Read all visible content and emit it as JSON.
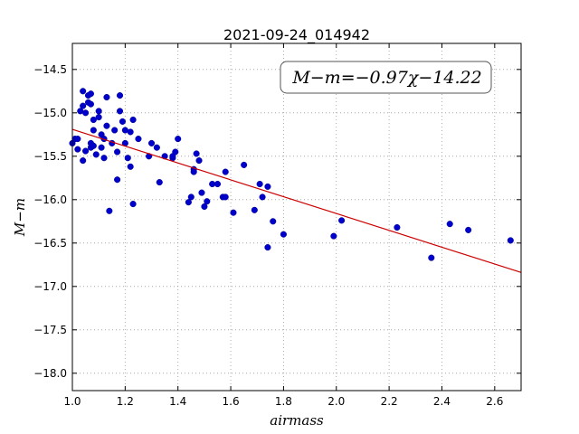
{
  "chart_data": {
    "type": "scatter",
    "title": "2021-09-24_014942",
    "xlabel": "airmass",
    "ylabel": "M−m",
    "xlim": [
      1.0,
      2.7
    ],
    "ylim": [
      -18.2,
      -14.2
    ],
    "y_inverted": true,
    "grid": true,
    "grid_style": "dotted",
    "x_ticks": [
      1.0,
      1.2,
      1.4,
      1.6,
      1.8,
      2.0,
      2.2,
      2.4,
      2.6
    ],
    "x_tick_labels": [
      "1.0",
      "1.2",
      "1.4",
      "1.6",
      "1.8",
      "2.0",
      "2.2",
      "2.4",
      "2.6"
    ],
    "y_ticks": [
      -14.5,
      -15.0,
      -15.5,
      -16.0,
      -16.5,
      -17.0,
      -17.5,
      -18.0
    ],
    "y_tick_labels": [
      "−14.5",
      "−15.0",
      "−15.5",
      "−16.0",
      "−16.5",
      "−17.0",
      "−17.5",
      "−18.0"
    ],
    "annotation": "M−m=−0.97χ−14.22",
    "fit": {
      "slope": -0.97,
      "intercept": -14.22,
      "color": "#cc0000"
    },
    "point_color": "#0000cc",
    "points": [
      [
        1.0,
        -15.35
      ],
      [
        1.01,
        -15.3
      ],
      [
        1.02,
        -15.42
      ],
      [
        1.02,
        -15.3
      ],
      [
        1.03,
        -14.98
      ],
      [
        1.04,
        -15.55
      ],
      [
        1.04,
        -14.75
      ],
      [
        1.04,
        -14.92
      ],
      [
        1.05,
        -15.0
      ],
      [
        1.05,
        -15.44
      ],
      [
        1.06,
        -14.88
      ],
      [
        1.06,
        -14.8
      ],
      [
        1.07,
        -14.9
      ],
      [
        1.07,
        -15.35
      ],
      [
        1.07,
        -15.4
      ],
      [
        1.07,
        -14.78
      ],
      [
        1.08,
        -15.08
      ],
      [
        1.08,
        -15.2
      ],
      [
        1.08,
        -15.38
      ],
      [
        1.09,
        -15.48
      ],
      [
        1.1,
        -15.05
      ],
      [
        1.1,
        -14.98
      ],
      [
        1.11,
        -15.4
      ],
      [
        1.11,
        -15.25
      ],
      [
        1.12,
        -15.52
      ],
      [
        1.12,
        -15.3
      ],
      [
        1.13,
        -14.82
      ],
      [
        1.13,
        -15.15
      ],
      [
        1.14,
        -16.13
      ],
      [
        1.15,
        -15.35
      ],
      [
        1.16,
        -15.2
      ],
      [
        1.17,
        -15.45
      ],
      [
        1.17,
        -15.77
      ],
      [
        1.18,
        -14.8
      ],
      [
        1.18,
        -14.98
      ],
      [
        1.19,
        -15.1
      ],
      [
        1.2,
        -15.2
      ],
      [
        1.2,
        -15.35
      ],
      [
        1.21,
        -15.52
      ],
      [
        1.22,
        -15.62
      ],
      [
        1.22,
        -15.22
      ],
      [
        1.23,
        -15.08
      ],
      [
        1.23,
        -16.05
      ],
      [
        1.25,
        -15.3
      ],
      [
        1.29,
        -15.5
      ],
      [
        1.3,
        -15.35
      ],
      [
        1.32,
        -15.4
      ],
      [
        1.33,
        -15.8
      ],
      [
        1.35,
        -15.5
      ],
      [
        1.38,
        -15.52
      ],
      [
        1.38,
        -15.5
      ],
      [
        1.39,
        -15.45
      ],
      [
        1.4,
        -15.3
      ],
      [
        1.44,
        -16.03
      ],
      [
        1.45,
        -15.97
      ],
      [
        1.46,
        -15.65
      ],
      [
        1.46,
        -15.68
      ],
      [
        1.47,
        -15.47
      ],
      [
        1.48,
        -15.55
      ],
      [
        1.49,
        -15.92
      ],
      [
        1.5,
        -16.08
      ],
      [
        1.51,
        -16.02
      ],
      [
        1.53,
        -15.82
      ],
      [
        1.55,
        -15.82
      ],
      [
        1.57,
        -15.97
      ],
      [
        1.58,
        -15.68
      ],
      [
        1.58,
        -15.97
      ],
      [
        1.61,
        -16.15
      ],
      [
        1.65,
        -15.6
      ],
      [
        1.69,
        -16.12
      ],
      [
        1.71,
        -15.82
      ],
      [
        1.72,
        -15.97
      ],
      [
        1.74,
        -16.55
      ],
      [
        1.74,
        -15.85
      ],
      [
        1.76,
        -16.25
      ],
      [
        1.8,
        -16.4
      ],
      [
        1.99,
        -16.42
      ],
      [
        2.02,
        -16.24
      ],
      [
        2.23,
        -16.32
      ],
      [
        2.36,
        -16.67
      ],
      [
        2.43,
        -16.28
      ],
      [
        2.5,
        -16.35
      ],
      [
        2.66,
        -16.47
      ]
    ]
  }
}
